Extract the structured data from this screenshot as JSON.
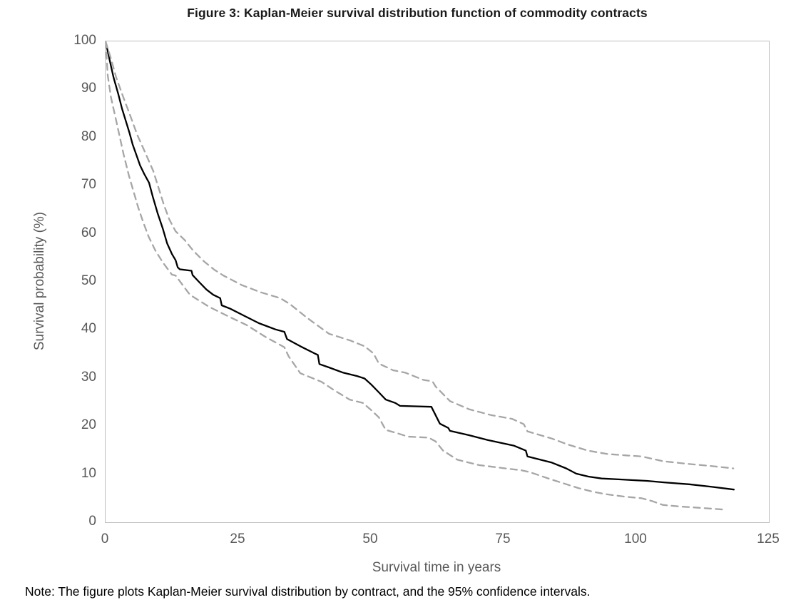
{
  "figure": {
    "title": "Figure 3: Kaplan-Meier survival distribution function of commodity contracts",
    "note": "Note: The figure plots Kaplan-Meier survival distribution by contract, and the 95% confidence intervals."
  },
  "chart_data": {
    "type": "line",
    "title": "Figure 3: Kaplan-Meier survival distribution function of commodity contracts",
    "xlabel": "Survival time in years",
    "ylabel": "Survival probability (%)",
    "xlim": [
      0,
      125
    ],
    "ylim": [
      0,
      100
    ],
    "x_ticks": [
      0,
      25,
      50,
      75,
      100,
      125
    ],
    "y_ticks": [
      0,
      10,
      20,
      30,
      40,
      50,
      60,
      70,
      80,
      90,
      100
    ],
    "grid": false,
    "legend_position": "none",
    "note": "Note: The figure plots Kaplan-Meier survival distribution by contract, and the 95% confidence intervals.",
    "colors": {
      "survival_line": "#000000",
      "confidence_interval": "#a6a6a6",
      "axis_text": "#595959",
      "plot_border": "#bfbfbf",
      "title_text": "#1a1a1a"
    },
    "series": [
      {
        "name": "Kaplan-Meier survival estimate",
        "semantic": "kaplan-meier-curve",
        "style": "solid",
        "color": "#000000",
        "points": [
          [
            0,
            100
          ],
          [
            0.5,
            97.5
          ],
          [
            1,
            95
          ],
          [
            1.5,
            92.5
          ],
          [
            2.4,
            89
          ],
          [
            3.1,
            86
          ],
          [
            3.8,
            83.5
          ],
          [
            4.5,
            81
          ],
          [
            5.1,
            78.6
          ],
          [
            5.8,
            76.4
          ],
          [
            6.5,
            74.2
          ],
          [
            7.3,
            72.4
          ],
          [
            8.2,
            70.6
          ],
          [
            8.9,
            67.7
          ],
          [
            9.8,
            64.3
          ],
          [
            10.8,
            61
          ],
          [
            11.6,
            58
          ],
          [
            12.5,
            55.8
          ],
          [
            13.2,
            54.5
          ],
          [
            13.6,
            53
          ],
          [
            14,
            52.6
          ],
          [
            16.2,
            52.3
          ],
          [
            16.4,
            51.4
          ],
          [
            17.6,
            50
          ],
          [
            19,
            48.4
          ],
          [
            20.3,
            47.3
          ],
          [
            21.6,
            46.6
          ],
          [
            21.9,
            45.1
          ],
          [
            23.5,
            44.4
          ],
          [
            26.2,
            42.9
          ],
          [
            28.9,
            41.4
          ],
          [
            32,
            40.1
          ],
          [
            33.7,
            39.6
          ],
          [
            34.2,
            38.1
          ],
          [
            36.7,
            36.6
          ],
          [
            39.4,
            35.1
          ],
          [
            40,
            34.8
          ],
          [
            40.3,
            32.9
          ],
          [
            42.1,
            32.2
          ],
          [
            44.8,
            31.1
          ],
          [
            47.4,
            30.4
          ],
          [
            48.8,
            29.9
          ],
          [
            50.1,
            28.6
          ],
          [
            51.5,
            27
          ],
          [
            52.8,
            25.5
          ],
          [
            54.6,
            24.8
          ],
          [
            55.5,
            24.2
          ],
          [
            61.4,
            24
          ],
          [
            63,
            20.5
          ],
          [
            64.6,
            19.6
          ],
          [
            64.9,
            19
          ],
          [
            68.5,
            18.1
          ],
          [
            72,
            17.1
          ],
          [
            77,
            15.9
          ],
          [
            79.2,
            14.9
          ],
          [
            79.5,
            13.7
          ],
          [
            84.1,
            12.4
          ],
          [
            86.8,
            11.2
          ],
          [
            88.7,
            10.1
          ],
          [
            91,
            9.5
          ],
          [
            93.5,
            9.1
          ],
          [
            97,
            8.9
          ],
          [
            102,
            8.6
          ],
          [
            105.2,
            8.3
          ],
          [
            110,
            7.9
          ],
          [
            114,
            7.4
          ],
          [
            118.4,
            6.8
          ]
        ]
      },
      {
        "name": "95% confidence interval upper bound",
        "semantic": "ci-upper-curve",
        "style": "dashed",
        "color": "#a6a6a6",
        "points": [
          [
            0,
            100
          ],
          [
            1,
            96.5
          ],
          [
            2,
            92.5
          ],
          [
            3.3,
            88.5
          ],
          [
            4.5,
            85
          ],
          [
            6,
            80.5
          ],
          [
            7.5,
            76.8
          ],
          [
            9,
            73
          ],
          [
            10,
            69.5
          ],
          [
            11,
            66
          ],
          [
            12,
            63
          ],
          [
            13.2,
            60.5
          ],
          [
            14.9,
            58.7
          ],
          [
            16.5,
            56.5
          ],
          [
            18.5,
            54.3
          ],
          [
            20.5,
            52.5
          ],
          [
            22.2,
            51.3
          ],
          [
            25.7,
            49.3
          ],
          [
            29.3,
            47.8
          ],
          [
            32.9,
            46.6
          ],
          [
            34.7,
            45.4
          ],
          [
            38,
            42.5
          ],
          [
            42.1,
            39.2
          ],
          [
            46.1,
            37.8
          ],
          [
            48.8,
            36.6
          ],
          [
            50.5,
            35.1
          ],
          [
            51.5,
            33
          ],
          [
            54.2,
            31.6
          ],
          [
            56.5,
            31.1
          ],
          [
            59.9,
            29.6
          ],
          [
            61.6,
            29.3
          ],
          [
            62.2,
            28.2
          ],
          [
            64.9,
            25.2
          ],
          [
            68.5,
            23.5
          ],
          [
            72.6,
            22.3
          ],
          [
            76.6,
            21.5
          ],
          [
            78.8,
            20.4
          ],
          [
            79.5,
            18.9
          ],
          [
            84.1,
            17.4
          ],
          [
            87,
            16.2
          ],
          [
            90.9,
            14.9
          ],
          [
            94.5,
            14.2
          ],
          [
            98.1,
            13.9
          ],
          [
            101,
            13.7
          ],
          [
            105,
            12.7
          ],
          [
            110,
            12.1
          ],
          [
            114,
            11.7
          ],
          [
            118.3,
            11.2
          ]
        ]
      },
      {
        "name": "95% confidence interval lower bound",
        "semantic": "ci-lower-curve",
        "style": "dashed",
        "color": "#a6a6a6",
        "points": [
          [
            0,
            100
          ],
          [
            0.4,
            93
          ],
          [
            1,
            88.5
          ],
          [
            2,
            83.5
          ],
          [
            3.4,
            76.5
          ],
          [
            4.4,
            72.1
          ],
          [
            5.4,
            68.3
          ],
          [
            6.2,
            65.3
          ],
          [
            7.1,
            62.4
          ],
          [
            8.1,
            59.4
          ],
          [
            9.4,
            56.5
          ],
          [
            10.8,
            54
          ],
          [
            12.5,
            51.5
          ],
          [
            13.2,
            51.3
          ],
          [
            15.9,
            47.3
          ],
          [
            19.5,
            44.8
          ],
          [
            23,
            42.9
          ],
          [
            26.6,
            41
          ],
          [
            30.2,
            38.5
          ],
          [
            33.7,
            36.4
          ],
          [
            34.5,
            34.5
          ],
          [
            36.7,
            31
          ],
          [
            40.7,
            29.2
          ],
          [
            43,
            27.5
          ],
          [
            46,
            25.5
          ],
          [
            48.5,
            24.8
          ],
          [
            50.1,
            23.3
          ],
          [
            51.5,
            21.8
          ],
          [
            52.8,
            19.2
          ],
          [
            55,
            18.5
          ],
          [
            57,
            17.8
          ],
          [
            60.9,
            17.6
          ],
          [
            62.2,
            16.8
          ],
          [
            63.6,
            14.9
          ],
          [
            66.3,
            13
          ],
          [
            70.3,
            11.9
          ],
          [
            75.3,
            11.2
          ],
          [
            78.4,
            10.8
          ],
          [
            80,
            10.4
          ],
          [
            83.7,
            9
          ],
          [
            89.1,
            7.1
          ],
          [
            92,
            6.3
          ],
          [
            94.5,
            5.8
          ],
          [
            98,
            5.3
          ],
          [
            101,
            5
          ],
          [
            103,
            4.4
          ],
          [
            105,
            3.6
          ],
          [
            108,
            3.3
          ],
          [
            112,
            3
          ],
          [
            117,
            2.6
          ]
        ]
      }
    ]
  }
}
